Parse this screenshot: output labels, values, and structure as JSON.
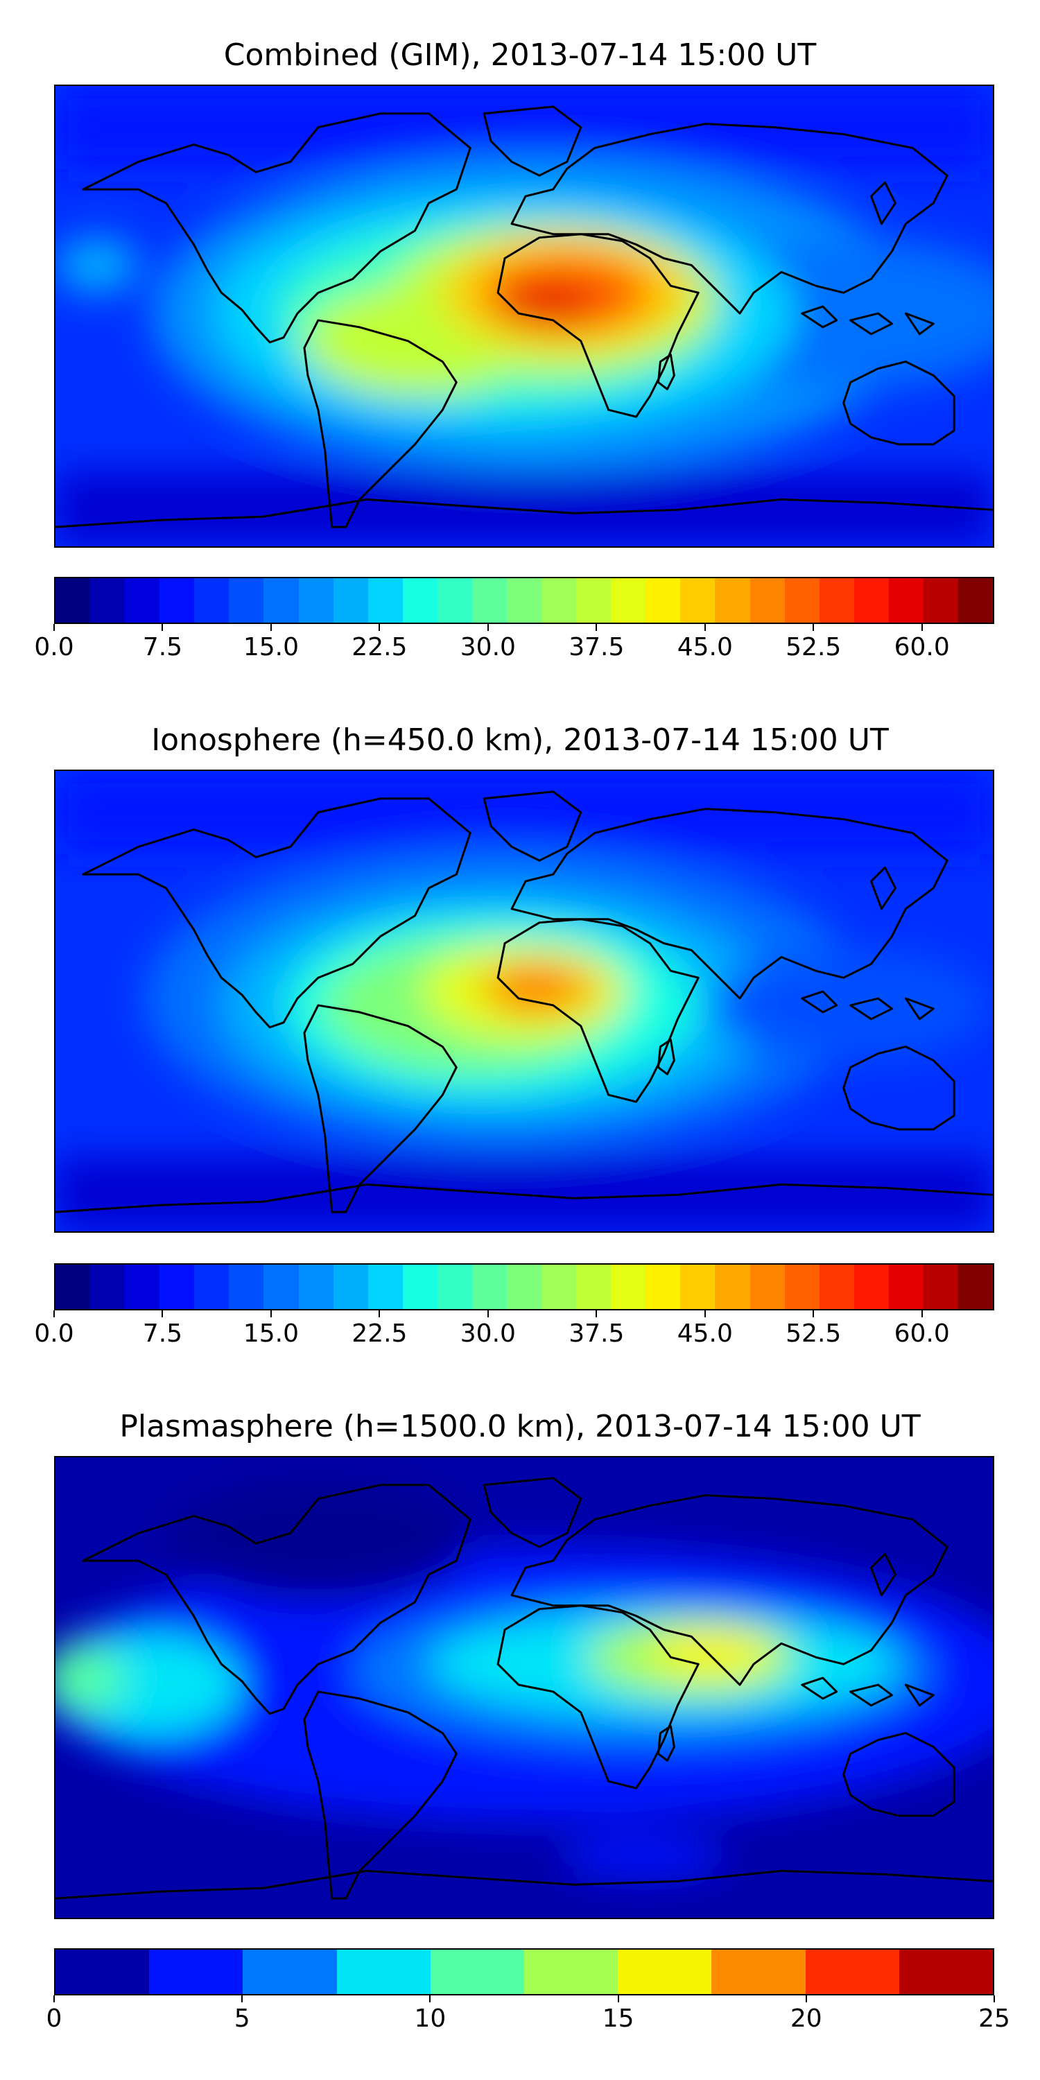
{
  "panels": [
    {
      "title": "Combined (GIM), 2013-07-14 15:00 UT",
      "colorbar": {
        "colors": [
          "#000080",
          "#0000b0",
          "#0000de",
          "#0010ff",
          "#0030ff",
          "#0050ff",
          "#0070ff",
          "#0090ff",
          "#00b0ff",
          "#00d4ff",
          "#16ffe1",
          "#33ffc4",
          "#5cff9a",
          "#7dff7a",
          "#a0ff57",
          "#c1ff36",
          "#e4ff13",
          "#fff000",
          "#ffcc00",
          "#ffa800",
          "#ff8400",
          "#ff6000",
          "#ff3800",
          "#ff1800",
          "#e40000",
          "#b80000",
          "#800000"
        ],
        "ticks": [
          "0.0",
          "7.5",
          "15.0",
          "22.5",
          "30.0",
          "37.5",
          "45.0",
          "52.5",
          "60.0"
        ],
        "range": [
          0,
          65
        ]
      }
    },
    {
      "title": "Ionosphere  (h=450.0 km), 2013-07-14 15:00 UT",
      "colorbar": {
        "colors": [
          "#000080",
          "#0000b0",
          "#0000de",
          "#0010ff",
          "#0030ff",
          "#0050ff",
          "#0070ff",
          "#0090ff",
          "#00b0ff",
          "#00d4ff",
          "#16ffe1",
          "#33ffc4",
          "#5cff9a",
          "#7dff7a",
          "#a0ff57",
          "#c1ff36",
          "#e4ff13",
          "#fff000",
          "#ffcc00",
          "#ffa800",
          "#ff8400",
          "#ff6000",
          "#ff3800",
          "#ff1800",
          "#e40000",
          "#b80000",
          "#800000"
        ],
        "ticks": [
          "0.0",
          "7.5",
          "15.0",
          "22.5",
          "30.0",
          "37.5",
          "45.0",
          "52.5",
          "60.0"
        ],
        "range": [
          0,
          65
        ]
      }
    },
    {
      "title": "Plasmasphere (h=1500.0 km), 2013-07-14 15:00 UT",
      "colorbar": {
        "colors": [
          "#0000a8",
          "#0014ff",
          "#0078ff",
          "#00e4f8",
          "#52ffa5",
          "#a5ff52",
          "#f8f500",
          "#ff8c00",
          "#ff2c00",
          "#b40000"
        ],
        "ticks": [
          "0",
          "5",
          "10",
          "15",
          "20",
          "25"
        ],
        "range": [
          0,
          25
        ]
      }
    }
  ]
}
